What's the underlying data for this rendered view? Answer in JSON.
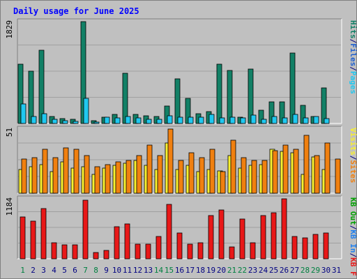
{
  "chart_data": {
    "type": "bar",
    "title": "Daily usage for June 2025",
    "days": [
      "1",
      "2",
      "3",
      "4",
      "5",
      "6",
      "7",
      "8",
      "9",
      "10",
      "11",
      "12",
      "13",
      "14",
      "15",
      "16",
      "17",
      "18",
      "19",
      "20",
      "21",
      "22",
      "23",
      "24",
      "25",
      "26",
      "27",
      "28",
      "29",
      "30",
      "31"
    ],
    "weekend_days": [
      1,
      7,
      8,
      14,
      15,
      21,
      22,
      28,
      29
    ],
    "panels": [
      {
        "id": "top",
        "max_label": "1829",
        "ymax": 1829,
        "series": [
          {
            "name": "Hits",
            "color": "#128066",
            "values": [
              1060,
              940,
              1320,
              120,
              90,
              80,
              1829,
              50,
              110,
              160,
              900,
              160,
              140,
              130,
              310,
              800,
              450,
              170,
              210,
              1060,
              950,
              110,
              980,
              240,
              390,
              390,
              1260,
              330,
              130,
              640,
              0
            ]
          },
          {
            "name": "Files",
            "color": "#2060d0",
            "values": [
              0,
              0,
              0,
              0,
              0,
              0,
              0,
              0,
              0,
              0,
              0,
              0,
              0,
              0,
              0,
              0,
              0,
              0,
              0,
              0,
              0,
              0,
              0,
              0,
              0,
              0,
              0,
              0,
              0,
              0,
              0
            ]
          },
          {
            "name": "Pages",
            "color": "#20c8f0",
            "values": [
              350,
              130,
              180,
              70,
              50,
              40,
              450,
              30,
              110,
              100,
              120,
              100,
              70,
              70,
              140,
              110,
              110,
              110,
              160,
              100,
              110,
              100,
              150,
              80,
              130,
              100,
              160,
              100,
              130,
              90,
              0
            ]
          }
        ],
        "labels": [
          {
            "text": "Pages",
            "color": "#20c8f0"
          },
          {
            "text": "/",
            "color": "#000080"
          },
          {
            "text": "Files",
            "color": "#2060d0"
          },
          {
            "text": "/",
            "color": "#000080"
          },
          {
            "text": "Hits",
            "color": "#128066"
          }
        ]
      },
      {
        "id": "mid",
        "max_label": "51",
        "ymax": 51,
        "series": [
          {
            "name": "Visits",
            "color": "#f8f030",
            "values": [
              19,
              21,
              23,
              17,
              25,
              20,
              21,
              15,
              20,
              22,
              24,
              26,
              22,
              19,
              40,
              19,
              22,
              17,
              19,
              18,
              30,
              20,
              22,
              23,
              35,
              33,
              32,
              15,
              29,
              19,
              0
            ]
          },
          {
            "name": "Sites",
            "color": "#f08010",
            "values": [
              27,
              28,
              35,
              28,
              36,
              35,
              30,
              21,
              23,
              25,
              26,
              30,
              38,
              30,
              51,
              26,
              32,
              28,
              35,
              17,
              42,
              28,
              26,
              26,
              34,
              38,
              35,
              46,
              30,
              40,
              27
            ]
          }
        ],
        "labels": [
          {
            "text": "Sites",
            "color": "#f08010"
          },
          {
            "text": "/",
            "color": "#000080"
          },
          {
            "text": "Visits",
            "color": "#f8f030"
          }
        ]
      },
      {
        "id": "bot",
        "max_label": "1184",
        "ymax": 1184,
        "series": [
          {
            "name": "KB Out",
            "color": "#00a000",
            "values": [
              0,
              0,
              0,
              0,
              0,
              0,
              0,
              0,
              0,
              0,
              0,
              0,
              0,
              0,
              0,
              0,
              0,
              0,
              0,
              0,
              0,
              0,
              0,
              0,
              0,
              0,
              0,
              0,
              0,
              0,
              0
            ]
          },
          {
            "name": "KB In",
            "color": "#2080f0",
            "values": [
              0,
              0,
              0,
              0,
              0,
              0,
              0,
              0,
              0,
              0,
              0,
              0,
              0,
              0,
              0,
              0,
              0,
              0,
              0,
              0,
              0,
              0,
              0,
              0,
              0,
              0,
              0,
              0,
              0,
              0,
              0
            ]
          },
          {
            "name": "KB F",
            "color": "#e81818",
            "values": [
              830,
              740,
              990,
              320,
              270,
              280,
              1150,
              130,
              160,
              630,
              690,
              290,
              290,
              440,
              1070,
              510,
              290,
              320,
              850,
              960,
              230,
              790,
              310,
              860,
              910,
              1184,
              440,
              410,
              480,
              510,
              0
            ]
          }
        ],
        "labels": [
          {
            "text": "KB F",
            "color": "#e81818"
          },
          {
            "text": "/",
            "color": "#000080"
          },
          {
            "text": "KB In",
            "color": "#2080f0"
          },
          {
            "text": "/",
            "color": "#000080"
          },
          {
            "text": "KB Out",
            "color": "#00a000"
          }
        ]
      }
    ],
    "colors": {
      "background": "#c0c0c0",
      "plot": "#c0c0c0",
      "title": "#0000ff",
      "weekday_label": "#000080",
      "weekend_label": "#008040",
      "axis_text": "#000000"
    }
  }
}
